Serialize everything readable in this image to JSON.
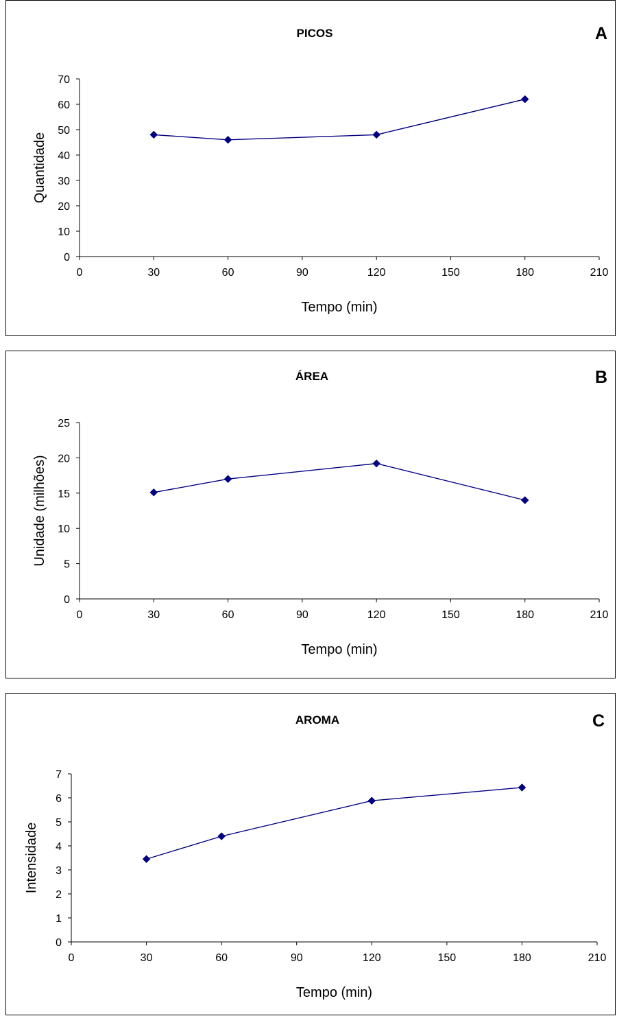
{
  "chart_data": [
    {
      "type": "line",
      "panel_letter": "A",
      "title": "PICOS",
      "xlabel": "Tempo (min)",
      "ylabel": "Quantidade",
      "xlim": [
        0,
        210
      ],
      "ylim": [
        0,
        70
      ],
      "x_ticks": [
        0,
        30,
        60,
        90,
        120,
        150,
        180,
        210
      ],
      "y_ticks": [
        0,
        10,
        20,
        30,
        40,
        50,
        60,
        70
      ],
      "grid": false,
      "series": [
        {
          "color": "#000080",
          "marker": "diamond",
          "points": [
            {
              "x": 30,
              "y": 48
            },
            {
              "x": 60,
              "y": 46
            },
            {
              "x": 120,
              "y": 48
            },
            {
              "x": 180,
              "y": 62
            }
          ]
        }
      ]
    },
    {
      "type": "line",
      "panel_letter": "B",
      "title": "ÁREA",
      "xlabel": "Tempo  (min)",
      "ylabel": "Unidade (milhões)",
      "xlim": [
        0,
        210
      ],
      "ylim": [
        0,
        25
      ],
      "x_ticks": [
        0,
        30,
        60,
        90,
        120,
        150,
        180,
        210
      ],
      "y_ticks": [
        0,
        5,
        10,
        15,
        20,
        25
      ],
      "grid": false,
      "series": [
        {
          "color": "#000080",
          "marker": "diamond",
          "points": [
            {
              "x": 30,
              "y": 15.1
            },
            {
              "x": 60,
              "y": 17
            },
            {
              "x": 120,
              "y": 19.2
            },
            {
              "x": 180,
              "y": 14
            }
          ]
        }
      ]
    },
    {
      "type": "line",
      "panel_letter": "C",
      "title": "AROMA",
      "xlabel": "Tempo (min)",
      "ylabel": "Intensidade",
      "xlim": [
        0,
        210
      ],
      "ylim": [
        0,
        7
      ],
      "x_ticks": [
        0,
        30,
        60,
        90,
        120,
        150,
        180,
        210
      ],
      "y_ticks": [
        0,
        1,
        2,
        3,
        4,
        5,
        6,
        7
      ],
      "grid": false,
      "series": [
        {
          "color": "#000080",
          "marker": "diamond",
          "points": [
            {
              "x": 30,
              "y": 3.45
            },
            {
              "x": 60,
              "y": 4.4
            },
            {
              "x": 120,
              "y": 5.88
            },
            {
              "x": 180,
              "y": 6.43
            }
          ]
        }
      ]
    }
  ]
}
